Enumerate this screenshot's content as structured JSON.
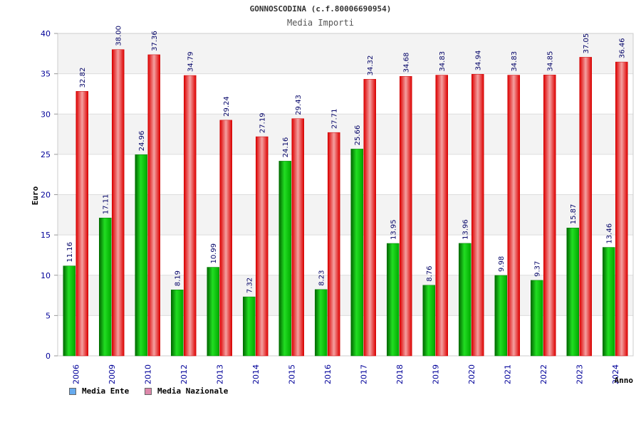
{
  "chart_data": {
    "type": "bar",
    "title": "GONNOSCODINA (c.f.80006690954)",
    "subtitle": "Media Importi",
    "ylabel": "Euro",
    "xlabel": "Anno",
    "ylim": [
      0,
      40
    ],
    "yticks": [
      0,
      5,
      10,
      15,
      20,
      25,
      30,
      35,
      40
    ],
    "grid": true,
    "legend_position": "bottom-left",
    "categories": [
      "2006",
      "2009",
      "2010",
      "2012",
      "2013",
      "2014",
      "2015",
      "2016",
      "2017",
      "2018",
      "2019",
      "2020",
      "2021",
      "2022",
      "2023",
      "2024"
    ],
    "series": [
      {
        "name": "Media Ente",
        "color": "#00cc00",
        "legend_color": "#66aaee",
        "values": [
          11.16,
          17.11,
          24.96,
          8.19,
          10.99,
          7.32,
          24.16,
          8.23,
          25.66,
          13.95,
          8.76,
          13.96,
          9.98,
          9.37,
          15.87,
          13.46
        ],
        "labels": [
          "11.16",
          "17.11",
          "24.96",
          "8.19",
          "10.99",
          "7.32",
          "24.16",
          "8.23",
          "25.66",
          "13.95",
          "8.76",
          "13.96",
          "9.98",
          "9.37",
          "15.87",
          "13.46"
        ]
      },
      {
        "name": "Media Nazionale",
        "color": "#ee2222",
        "legend_color": "#dd88aa",
        "values": [
          32.82,
          38.0,
          37.36,
          34.79,
          29.24,
          27.19,
          29.43,
          27.71,
          34.32,
          34.68,
          34.83,
          34.94,
          34.83,
          34.85,
          37.05,
          36.46
        ],
        "labels": [
          "32.82",
          "38.00",
          "37.36",
          "34.79",
          "29.24",
          "27.19",
          "29.43",
          "27.71",
          "34.32",
          "34.68",
          "34.83",
          "34.94",
          "34.83",
          "34.85",
          "37.05",
          "36.46"
        ]
      }
    ]
  }
}
